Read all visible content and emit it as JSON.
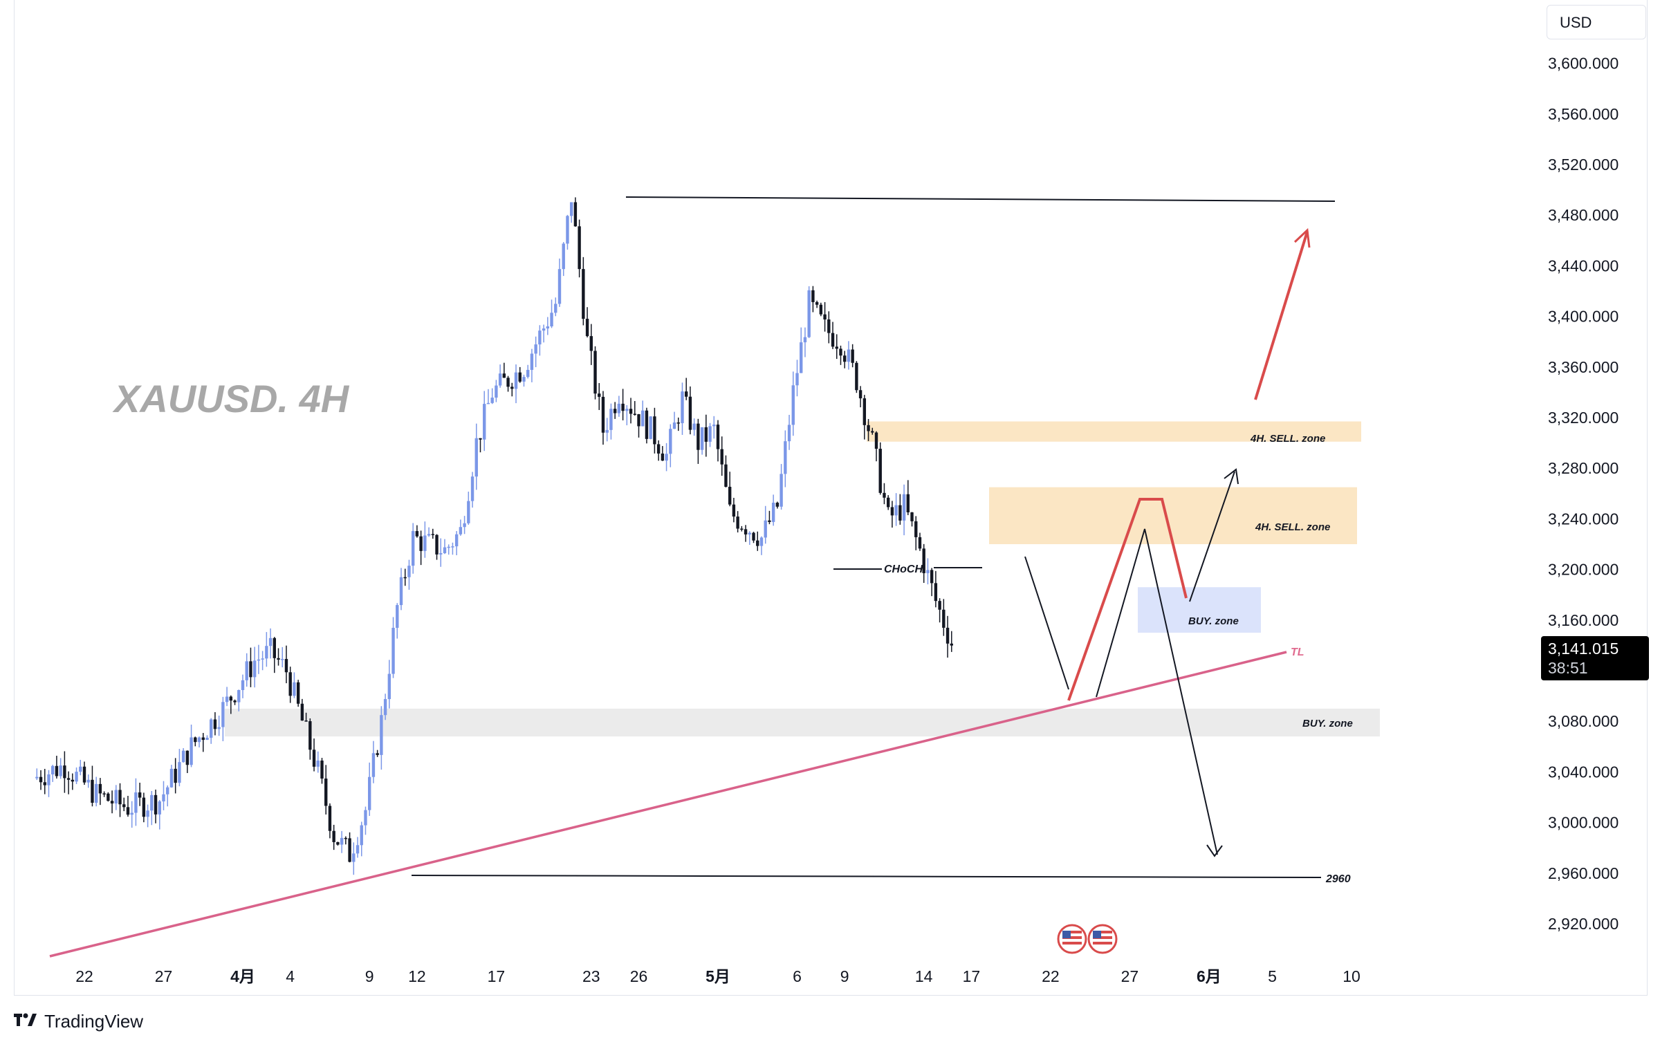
{
  "chart_data": {
    "type": "candlestick",
    "title": "XAUUSD. 4H",
    "currency": "USD",
    "ylim": [
      2890,
      3640
    ],
    "y_ticks": [
      "3,600.000",
      "3,560.000",
      "3,520.000",
      "3,480.000",
      "3,440.000",
      "3,400.000",
      "3,360.000",
      "3,320.000",
      "3,280.000",
      "3,240.000",
      "3,200.000",
      "3,160.000",
      "3,080.000",
      "3,040.000",
      "3,000.000",
      "2,960.000",
      "2,920.000"
    ],
    "x_ticks": [
      {
        "label": "22",
        "date": "2025-03-22",
        "month": false
      },
      {
        "label": "27",
        "date": "2025-03-27",
        "month": false
      },
      {
        "label": "4月",
        "date": "2025-04-01",
        "month": true
      },
      {
        "label": "4",
        "date": "2025-04-04",
        "month": false
      },
      {
        "label": "9",
        "date": "2025-04-09",
        "month": false
      },
      {
        "label": "12",
        "date": "2025-04-12",
        "month": false
      },
      {
        "label": "17",
        "date": "2025-04-17",
        "month": false
      },
      {
        "label": "23",
        "date": "2025-04-23",
        "month": false
      },
      {
        "label": "26",
        "date": "2025-04-26",
        "month": false
      },
      {
        "label": "5月",
        "date": "2025-05-01",
        "month": true
      },
      {
        "label": "6",
        "date": "2025-05-06",
        "month": false
      },
      {
        "label": "9",
        "date": "2025-05-09",
        "month": false
      },
      {
        "label": "14",
        "date": "2025-05-14",
        "month": false
      },
      {
        "label": "17",
        "date": "2025-05-17",
        "month": false
      },
      {
        "label": "22",
        "date": "2025-05-22",
        "month": false
      },
      {
        "label": "27",
        "date": "2025-05-27",
        "month": false
      },
      {
        "label": "6月",
        "date": "2025-06-01",
        "month": true
      },
      {
        "label": "5",
        "date": "2025-06-05",
        "month": false
      },
      {
        "label": "10",
        "date": "2025-06-10",
        "month": false
      }
    ],
    "price_path": [
      [
        "2025-03-19",
        3035
      ],
      [
        "2025-03-21",
        3045
      ],
      [
        "2025-03-23",
        3022
      ],
      [
        "2025-03-25",
        3012
      ],
      [
        "2025-03-27",
        3018
      ],
      [
        "2025-03-29",
        3060
      ],
      [
        "2025-03-31",
        3090
      ],
      [
        "2025-04-02",
        3128
      ],
      [
        "2025-04-03",
        3135
      ],
      [
        "2025-04-04",
        3120
      ],
      [
        "2025-04-05",
        3080
      ],
      [
        "2025-04-06",
        3040
      ],
      [
        "2025-04-07",
        2990
      ],
      [
        "2025-04-08",
        2975
      ],
      [
        "2025-04-09",
        3010
      ],
      [
        "2025-04-10",
        3080
      ],
      [
        "2025-04-11",
        3170
      ],
      [
        "2025-04-12",
        3225
      ],
      [
        "2025-04-14",
        3215
      ],
      [
        "2025-04-15",
        3230
      ],
      [
        "2025-04-16",
        3300
      ],
      [
        "2025-04-17",
        3340
      ],
      [
        "2025-04-19",
        3360
      ],
      [
        "2025-04-21",
        3410
      ],
      [
        "2025-04-22",
        3495
      ],
      [
        "2025-04-23",
        3380
      ],
      [
        "2025-04-24",
        3310
      ],
      [
        "2025-04-25",
        3340
      ],
      [
        "2025-04-27",
        3310
      ],
      [
        "2025-04-28",
        3290
      ],
      [
        "2025-04-29",
        3335
      ],
      [
        "2025-04-30",
        3300
      ],
      [
        "2025-05-01",
        3310
      ],
      [
        "2025-05-02",
        3245
      ],
      [
        "2025-05-03",
        3235
      ],
      [
        "2025-05-04",
        3225
      ],
      [
        "2025-05-05",
        3250
      ],
      [
        "2025-05-06",
        3340
      ],
      [
        "2025-05-07",
        3410
      ],
      [
        "2025-05-08",
        3390
      ],
      [
        "2025-05-09",
        3380
      ],
      [
        "2025-05-10",
        3350
      ],
      [
        "2025-05-11",
        3300
      ],
      [
        "2025-05-12",
        3240
      ],
      [
        "2025-05-13",
        3250
      ],
      [
        "2025-05-14",
        3215
      ],
      [
        "2025-05-15",
        3175
      ],
      [
        "2025-05-16",
        3142
      ]
    ],
    "last_price": "3,141.015",
    "countdown": "38:51",
    "annotations": {
      "sell_zone_1": {
        "label": "4H. SELL. zone",
        "low": 3301,
        "high": 3317
      },
      "sell_zone_2": {
        "label": "4H. SELL. zone",
        "low": 3220,
        "high": 3265
      },
      "buy_zone_1": {
        "label": "BUY. zone",
        "low": 3150,
        "high": 3186
      },
      "buy_zone_2": {
        "label": "BUY. zone",
        "low": 3068,
        "high": 3090
      },
      "choch": {
        "label": "CHoCH",
        "price": 3203
      },
      "level_2960": {
        "label": "2960",
        "price": 2960
      },
      "top_line": {
        "price": 3495
      },
      "trendline": {
        "label": "TL"
      }
    }
  },
  "ui": {
    "brand": "TradingView",
    "currency_selector": "USD",
    "event_flags": [
      "US",
      "US"
    ]
  }
}
